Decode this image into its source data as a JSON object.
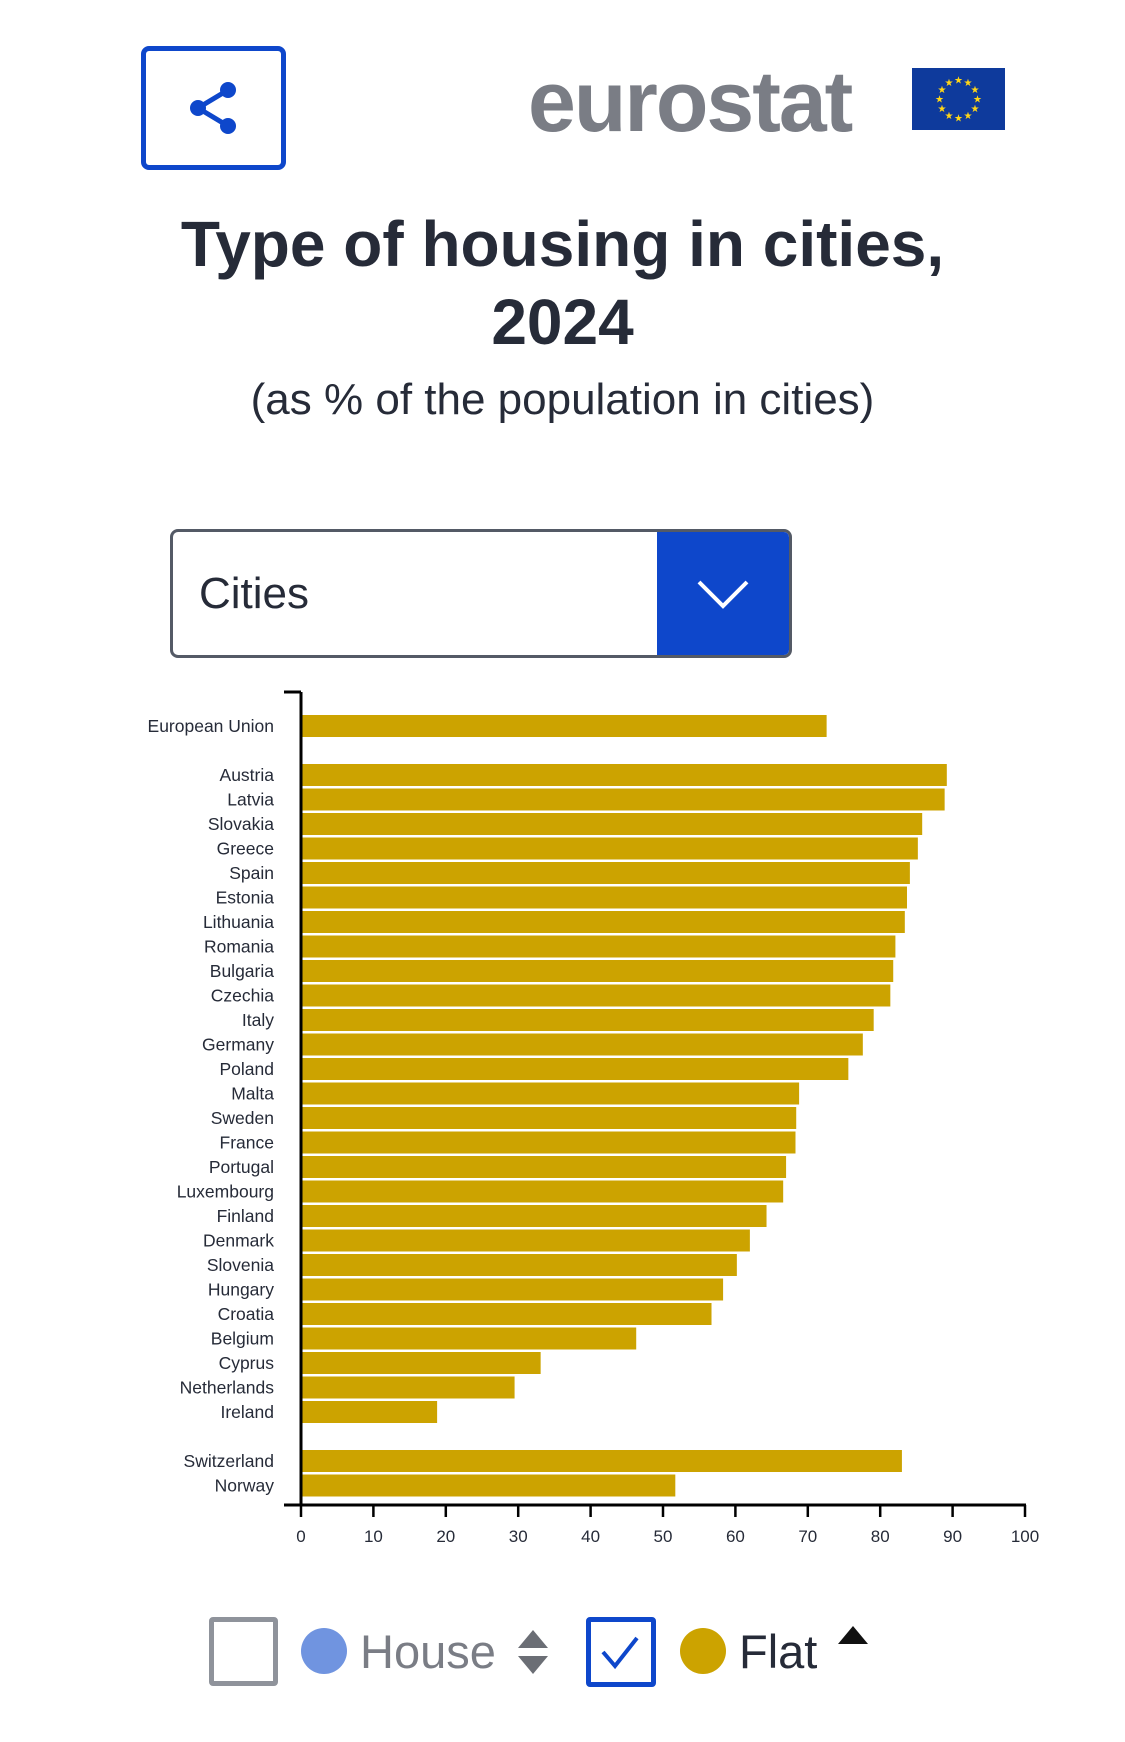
{
  "header": {
    "share_label": "share",
    "logo_text": "eurostat",
    "title_line1": "Type of housing in cities,",
    "title_line2": "2024",
    "subtitle": "(as % of the population in cities)"
  },
  "dropdown": {
    "selected": "Cities"
  },
  "legend": {
    "items": [
      {
        "label": "House",
        "checked": false,
        "color": "#7094e0",
        "sort": "both"
      },
      {
        "label": "Flat",
        "checked": true,
        "color": "#cca300",
        "sort": "descending"
      }
    ]
  },
  "colors": {
    "accent": "#0e47cb",
    "flat": "#cca300",
    "house": "#7094e0"
  },
  "chart_data": {
    "type": "bar",
    "orientation": "horizontal",
    "title": "Type of housing in cities, 2024",
    "subtitle": "(as % of the population in cities)",
    "series_name": "Flat",
    "categories": [
      "European Union",
      "Austria",
      "Latvia",
      "Slovakia",
      "Greece",
      "Spain",
      "Estonia",
      "Lithuania",
      "Romania",
      "Bulgaria",
      "Czechia",
      "Italy",
      "Germany",
      "Poland",
      "Malta",
      "Sweden",
      "France",
      "Portugal",
      "Luxembourg",
      "Finland",
      "Denmark",
      "Slovenia",
      "Hungary",
      "Croatia",
      "Belgium",
      "Cyprus",
      "Netherlands",
      "Ireland",
      "Switzerland",
      "Norway"
    ],
    "groups": [
      0,
      1,
      1,
      1,
      1,
      1,
      1,
      1,
      1,
      1,
      1,
      1,
      1,
      1,
      1,
      1,
      1,
      1,
      1,
      1,
      1,
      1,
      1,
      1,
      1,
      1,
      1,
      1,
      2,
      2
    ],
    "values": [
      72.6,
      89.2,
      88.9,
      85.8,
      85.2,
      84.1,
      83.7,
      83.4,
      82.1,
      81.8,
      81.4,
      79.1,
      77.6,
      75.6,
      68.8,
      68.4,
      68.3,
      67.0,
      66.6,
      64.3,
      62.0,
      60.2,
      58.3,
      56.7,
      46.3,
      33.1,
      29.5,
      18.8,
      83.0,
      51.7
    ],
    "xlim": [
      0,
      100
    ],
    "xticks": [
      "0",
      "10",
      "20",
      "30",
      "40",
      "50",
      "60",
      "70",
      "80",
      "90",
      "100"
    ],
    "grid": false
  }
}
